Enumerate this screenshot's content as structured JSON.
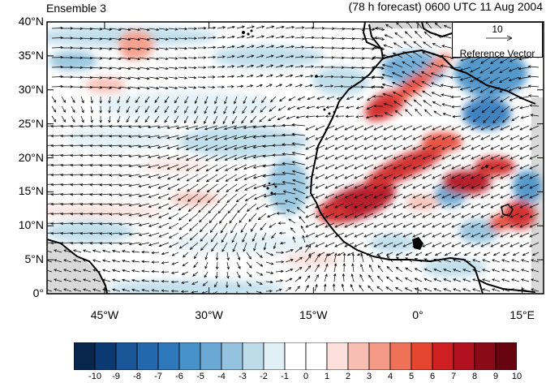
{
  "title_left": "Ensemble 3",
  "title_right": "(78 h forecast) 0600 UTC 11 Aug 2004",
  "reference_vector": {
    "magnitude": "10",
    "label": "Reference Vector"
  },
  "lat_labels": [
    "0°",
    "5°N",
    "10°N",
    "15°N",
    "20°N",
    "25°N",
    "30°N",
    "35°N",
    "40°N"
  ],
  "lon_labels": [
    "45°W",
    "30°W",
    "15°W",
    "0°",
    "15°E"
  ],
  "colorbar": {
    "labels": [
      "-10",
      "-9",
      "-8",
      "-7",
      "-6",
      "-5",
      "-4",
      "-3",
      "-2",
      "-1",
      "0",
      "1",
      "2",
      "3",
      "4",
      "5",
      "6",
      "7",
      "8",
      "9",
      "10"
    ],
    "colors": [
      "#08254d",
      "#0b3a73",
      "#1a5598",
      "#2367ad",
      "#2f78bb",
      "#4691c7",
      "#6ba8d3",
      "#93c3de",
      "#bcdcea",
      "#e1f0f7",
      "#ffffff",
      "#ffffff",
      "#fde0dc",
      "#f9beb3",
      "#f59a86",
      "#ef7258",
      "#e64530",
      "#ce2020",
      "#b1111f",
      "#8a0a18",
      "#660510"
    ]
  },
  "colors": {
    "land_mask": "#d9d9d9",
    "coast": "#000000",
    "vector": "#000000"
  }
}
